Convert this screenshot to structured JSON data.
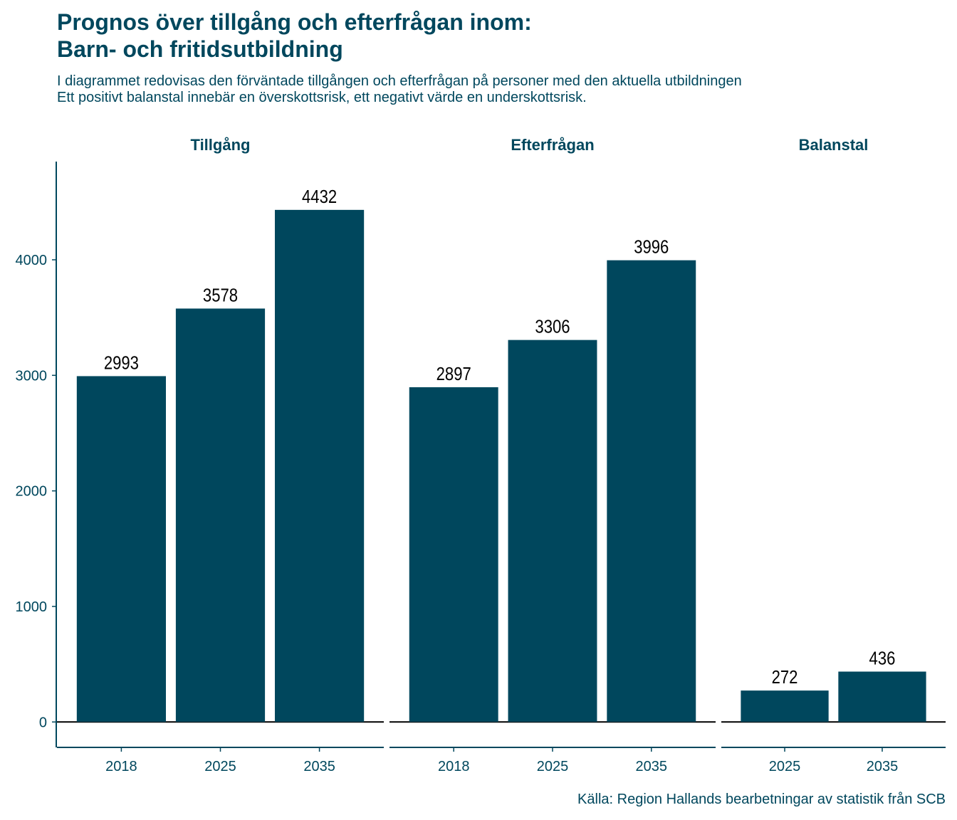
{
  "title_line1": "Prognos över tillgång och efterfrågan inom:",
  "title_line2": "Barn- och fritidsutbildning",
  "subtitle_line1": "I diagrammet redovisas den förväntade tillgången och efterfrågan på personer med den aktuella utbildningen",
  "subtitle_line2": "Ett positivt balanstal innebär en överskottsrisk, ett negativt värde en underskottsrisk.",
  "caption": "Källa: Region Hallands bearbetningar av statistik från SCB",
  "colors": {
    "bar": "#00475d",
    "text": "#00475d",
    "label": "#000000"
  },
  "chart_data": {
    "type": "bar",
    "ylim": [
      -220,
      4850
    ],
    "yticks": [
      0,
      1000,
      2000,
      3000,
      4000
    ],
    "grid": false,
    "panels": [
      {
        "name": "Tillgång",
        "categories": [
          "2018",
          "2025",
          "2035"
        ],
        "values": [
          2993,
          3578,
          4432
        ]
      },
      {
        "name": "Efterfrågan",
        "categories": [
          "2018",
          "2025",
          "2035"
        ],
        "values": [
          2897,
          3306,
          3996
        ]
      },
      {
        "name": "Balanstal",
        "categories": [
          "2025",
          "2035"
        ],
        "values": [
          272,
          436
        ]
      }
    ]
  }
}
